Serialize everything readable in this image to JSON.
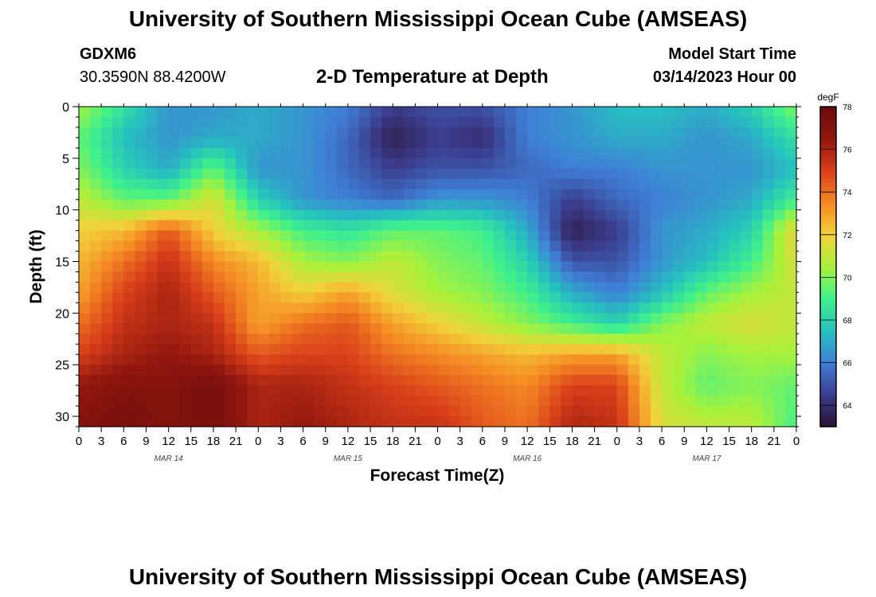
{
  "page": {
    "title": "University of Southern Mississippi Ocean Cube (AMSEAS)",
    "title_repeat": "University of Southern Mississippi Ocean Cube (AMSEAS)",
    "station_id": "GDXM6",
    "coordinates": "30.3590N  88.4200W",
    "chart_title": "2-D Temperature at Depth",
    "model_label": "Model Start Time",
    "model_start": "03/14/2023 Hour 00"
  },
  "chart_data": {
    "type": "heatmap",
    "title": "2-D Temperature at Depth",
    "xlabel": "Forecast Time(Z)",
    "ylabel": "Depth (ft)",
    "colorbar_label": "degF",
    "x_hours": [
      0,
      6,
      12,
      18,
      24,
      30,
      36,
      42,
      48,
      54,
      60,
      66,
      72,
      78,
      84,
      90,
      96
    ],
    "y_depths": [
      0,
      3,
      6,
      9,
      12,
      15,
      18,
      21,
      24,
      27,
      31
    ],
    "values": [
      [
        70.5,
        68.5,
        66.5,
        66.5,
        67.0,
        66.5,
        66.0,
        64.5,
        65.0,
        65.0,
        66.0,
        66.5,
        67.5,
        67.5,
        67.0,
        68.0,
        70.0
      ],
      [
        69.5,
        67.5,
        66.5,
        67.0,
        67.0,
        66.5,
        65.5,
        63.5,
        64.5,
        64.0,
        66.0,
        66.5,
        67.0,
        67.0,
        66.5,
        67.0,
        68.5
      ],
      [
        70.0,
        68.0,
        67.0,
        69.5,
        66.5,
        66.5,
        65.5,
        64.5,
        65.0,
        65.0,
        65.5,
        66.0,
        66.0,
        66.5,
        66.5,
        66.5,
        67.5
      ],
      [
        71.0,
        69.5,
        69.5,
        71.5,
        68.0,
        66.5,
        66.0,
        65.5,
        66.5,
        66.5,
        66.0,
        64.5,
        65.5,
        66.0,
        66.5,
        67.0,
        69.0
      ],
      [
        72.0,
        72.5,
        74.5,
        72.0,
        70.5,
        69.0,
        68.5,
        69.5,
        69.5,
        69.0,
        67.0,
        63.5,
        64.5,
        66.5,
        67.0,
        68.0,
        72.0
      ],
      [
        72.5,
        74.0,
        75.5,
        73.5,
        72.5,
        70.5,
        70.0,
        71.0,
        70.0,
        69.5,
        68.0,
        65.0,
        65.0,
        66.5,
        67.5,
        69.0,
        71.5
      ],
      [
        73.0,
        75.0,
        76.0,
        74.5,
        73.0,
        72.0,
        73.0,
        71.5,
        70.5,
        70.0,
        69.0,
        67.0,
        66.0,
        67.5,
        69.5,
        70.5,
        71.0
      ],
      [
        74.0,
        75.5,
        76.0,
        75.5,
        73.0,
        74.0,
        74.5,
        73.0,
        72.0,
        71.0,
        70.0,
        69.0,
        68.0,
        70.0,
        71.0,
        71.5,
        71.0
      ],
      [
        75.0,
        76.0,
        76.5,
        76.0,
        74.5,
        75.0,
        75.0,
        74.0,
        73.5,
        73.0,
        72.5,
        73.0,
        73.0,
        71.0,
        70.0,
        70.5,
        70.5
      ],
      [
        76.5,
        77.0,
        77.0,
        77.5,
        76.0,
        76.0,
        75.5,
        75.0,
        74.5,
        74.0,
        73.5,
        75.0,
        75.0,
        71.0,
        69.5,
        70.0,
        69.5
      ],
      [
        77.0,
        77.5,
        77.0,
        77.5,
        76.0,
        76.5,
        76.0,
        75.5,
        75.5,
        74.5,
        74.0,
        76.0,
        75.5,
        71.5,
        71.0,
        71.0,
        69.0
      ]
    ],
    "xlim": [
      0,
      96
    ],
    "ylim": [
      31,
      0
    ],
    "x_tick_labels": [
      "0",
      "3",
      "6",
      "9",
      "12",
      "15",
      "18",
      "21",
      "0",
      "3",
      "6",
      "9",
      "12",
      "15",
      "18",
      "21",
      "0",
      "3",
      "6",
      "9",
      "12",
      "15",
      "18",
      "21",
      "0",
      "3",
      "6",
      "9",
      "12",
      "15",
      "18",
      "21",
      "0"
    ],
    "y_tick_labels": [
      "0",
      "5",
      "10",
      "15",
      "20",
      "25",
      "30"
    ],
    "y_ticks": [
      0,
      5,
      10,
      15,
      20,
      25,
      30
    ],
    "date_labels": [
      "MAR 14",
      "MAR 15",
      "MAR 16",
      "MAR 17"
    ],
    "date_label_hours": [
      12,
      36,
      60,
      84
    ],
    "colorbar_range": [
      63,
      78
    ],
    "colorbar_ticks": [
      64,
      66,
      68,
      70,
      72,
      74,
      76,
      78
    ],
    "colorbar_tick_labels": [
      "64",
      "66",
      "68",
      "70",
      "72",
      "74",
      "76",
      "78"
    ],
    "colormap": [
      "#2a1230",
      "#3b3c8c",
      "#3f7fd6",
      "#26c0c0",
      "#3ff08c",
      "#a8f23c",
      "#f2d23a",
      "#f58a24",
      "#d9401a",
      "#92170e",
      "#6a0b0b"
    ]
  }
}
